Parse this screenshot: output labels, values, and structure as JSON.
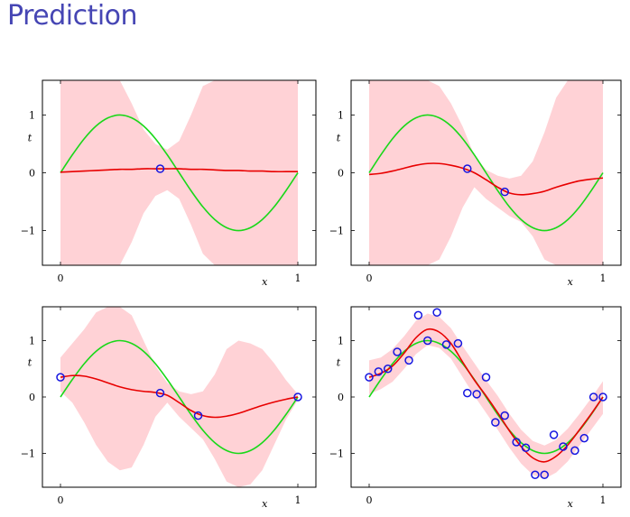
{
  "title": "Prediction",
  "colors": {
    "title": "#4646b4",
    "band": "#ffd2d6",
    "mean": "#e80000",
    "truth": "#19d819",
    "points": "#1515e0"
  },
  "chart_data": [
    {
      "type": "line",
      "xlabel": "x",
      "ylabel": "t",
      "xlim": [
        0,
        1
      ],
      "ylim": [
        -1.6,
        1.6
      ],
      "x_ticks": [
        "0",
        "1"
      ],
      "y_ticks": [
        "−1",
        "0",
        "1"
      ],
      "x": [
        0,
        0.05,
        0.1,
        0.15,
        0.2,
        0.25,
        0.3,
        0.35,
        0.4,
        0.45,
        0.5,
        0.55,
        0.6,
        0.65,
        0.7,
        0.75,
        0.8,
        0.85,
        0.9,
        0.95,
        1
      ],
      "series": [
        {
          "role": "true_function",
          "values": [
            0,
            0.31,
            0.59,
            0.81,
            0.95,
            1,
            0.95,
            0.81,
            0.59,
            0.31,
            0,
            -0.31,
            -0.59,
            -0.81,
            -0.95,
            -1,
            -0.95,
            -0.81,
            -0.59,
            -0.31,
            0
          ]
        },
        {
          "role": "predictive_mean",
          "values": [
            0.01,
            0.02,
            0.03,
            0.04,
            0.05,
            0.06,
            0.06,
            0.07,
            0.07,
            0.07,
            0.07,
            0.06,
            0.06,
            0.05,
            0.04,
            0.04,
            0.03,
            0.03,
            0.02,
            0.02,
            0.02
          ]
        },
        {
          "role": "upper_band",
          "values": [
            1.6,
            1.6,
            1.6,
            1.6,
            1.6,
            1.6,
            1.2,
            0.75,
            0.5,
            0.4,
            0.55,
            1,
            1.5,
            1.6,
            1.6,
            1.6,
            1.6,
            1.6,
            1.6,
            1.6,
            1.6
          ]
        },
        {
          "role": "lower_band",
          "values": [
            -1.6,
            -1.6,
            -1.6,
            -1.6,
            -1.6,
            -1.6,
            -1.2,
            -0.7,
            -0.4,
            -0.3,
            -0.45,
            -0.9,
            -1.4,
            -1.6,
            -1.6,
            -1.6,
            -1.6,
            -1.6,
            -1.6,
            -1.6,
            -1.6
          ]
        }
      ],
      "points": [
        [
          0.42,
          0.07
        ]
      ]
    },
    {
      "type": "line",
      "xlabel": "x",
      "ylabel": "t",
      "xlim": [
        0,
        1
      ],
      "ylim": [
        -1.6,
        1.6
      ],
      "x_ticks": [
        "0",
        "1"
      ],
      "y_ticks": [
        "−1",
        "0",
        "1"
      ],
      "x": [
        0,
        0.05,
        0.1,
        0.15,
        0.2,
        0.25,
        0.3,
        0.35,
        0.4,
        0.45,
        0.5,
        0.55,
        0.6,
        0.65,
        0.7,
        0.75,
        0.8,
        0.85,
        0.9,
        0.95,
        1
      ],
      "series": [
        {
          "role": "true_function",
          "values": [
            0,
            0.31,
            0.59,
            0.81,
            0.95,
            1,
            0.95,
            0.81,
            0.59,
            0.31,
            0,
            -0.31,
            -0.59,
            -0.81,
            -0.95,
            -1,
            -0.95,
            -0.81,
            -0.59,
            -0.31,
            0
          ]
        },
        {
          "role": "predictive_mean",
          "values": [
            -0.03,
            -0.01,
            0.03,
            0.08,
            0.13,
            0.16,
            0.16,
            0.13,
            0.08,
            0,
            -0.12,
            -0.25,
            -0.35,
            -0.38,
            -0.36,
            -0.32,
            -0.25,
            -0.19,
            -0.14,
            -0.11,
            -0.09
          ]
        },
        {
          "role": "upper_band",
          "values": [
            1.6,
            1.6,
            1.6,
            1.6,
            1.6,
            1.6,
            1.5,
            1.2,
            0.8,
            0.3,
            0.05,
            -0.05,
            -0.1,
            -0.05,
            0.2,
            0.7,
            1.3,
            1.6,
            1.6,
            1.6,
            1.6
          ]
        },
        {
          "role": "lower_band",
          "values": [
            -1.6,
            -1.6,
            -1.6,
            -1.6,
            -1.6,
            -1.6,
            -1.5,
            -1.1,
            -0.6,
            -0.25,
            -0.45,
            -0.6,
            -0.75,
            -0.85,
            -1.1,
            -1.5,
            -1.6,
            -1.6,
            -1.6,
            -1.6,
            -1.6
          ]
        }
      ],
      "points": [
        [
          0.42,
          0.07
        ],
        [
          0.58,
          -0.33
        ]
      ]
    },
    {
      "type": "line",
      "xlabel": "x",
      "ylabel": "t",
      "xlim": [
        0,
        1
      ],
      "ylim": [
        -1.6,
        1.6
      ],
      "x_ticks": [
        "0",
        "1"
      ],
      "y_ticks": [
        "−1",
        "0",
        "1"
      ],
      "x": [
        0,
        0.05,
        0.1,
        0.15,
        0.2,
        0.25,
        0.3,
        0.35,
        0.4,
        0.45,
        0.5,
        0.55,
        0.6,
        0.65,
        0.7,
        0.75,
        0.8,
        0.85,
        0.9,
        0.95,
        1
      ],
      "series": [
        {
          "role": "true_function",
          "values": [
            0,
            0.31,
            0.59,
            0.81,
            0.95,
            1,
            0.95,
            0.81,
            0.59,
            0.31,
            0,
            -0.31,
            -0.59,
            -0.81,
            -0.95,
            -1,
            -0.95,
            -0.81,
            -0.59,
            -0.31,
            0
          ]
        },
        {
          "role": "predictive_mean",
          "values": [
            0.35,
            0.38,
            0.37,
            0.32,
            0.25,
            0.18,
            0.13,
            0.1,
            0.08,
            0.03,
            -0.1,
            -0.24,
            -0.33,
            -0.36,
            -0.34,
            -0.29,
            -0.22,
            -0.15,
            -0.09,
            -0.04,
            0
          ]
        },
        {
          "role": "upper_band",
          "values": [
            0.7,
            0.95,
            1.2,
            1.5,
            1.6,
            1.6,
            1.45,
            1.0,
            0.55,
            0.25,
            0.1,
            0.05,
            0.1,
            0.4,
            0.85,
            1.0,
            0.95,
            0.85,
            0.6,
            0.3,
            0.05
          ]
        },
        {
          "role": "lower_band",
          "values": [
            0.1,
            -0.1,
            -0.45,
            -0.85,
            -1.15,
            -1.3,
            -1.25,
            -0.85,
            -0.35,
            -0.1,
            -0.35,
            -0.55,
            -0.75,
            -1.1,
            -1.5,
            -1.6,
            -1.55,
            -1.3,
            -0.85,
            -0.4,
            -0.05
          ]
        }
      ],
      "points": [
        [
          0,
          0.35
        ],
        [
          0.42,
          0.07
        ],
        [
          0.58,
          -0.33
        ],
        [
          1,
          0
        ]
      ]
    },
    {
      "type": "line",
      "xlabel": "x",
      "ylabel": "t",
      "xlim": [
        0,
        1
      ],
      "ylim": [
        -1.6,
        1.6
      ],
      "x_ticks": [
        "0",
        "1"
      ],
      "y_ticks": [
        "−1",
        "0",
        "1"
      ],
      "x": [
        0,
        0.05,
        0.1,
        0.15,
        0.2,
        0.25,
        0.3,
        0.35,
        0.4,
        0.45,
        0.5,
        0.55,
        0.6,
        0.65,
        0.7,
        0.75,
        0.8,
        0.85,
        0.9,
        0.95,
        1
      ],
      "series": [
        {
          "role": "true_function",
          "values": [
            0,
            0.31,
            0.59,
            0.81,
            0.95,
            1,
            0.95,
            0.81,
            0.59,
            0.31,
            0,
            -0.31,
            -0.59,
            -0.81,
            -0.95,
            -1,
            -0.95,
            -0.81,
            -0.59,
            -0.31,
            0
          ]
        },
        {
          "role": "predictive_mean",
          "values": [
            0.35,
            0.42,
            0.55,
            0.78,
            1.05,
            1.2,
            1.15,
            0.95,
            0.62,
            0.3,
            0.02,
            -0.28,
            -0.6,
            -0.88,
            -1.08,
            -1.15,
            -1.05,
            -0.85,
            -0.58,
            -0.3,
            0
          ]
        },
        {
          "role": "upper_band",
          "values": [
            0.65,
            0.7,
            0.85,
            1.08,
            1.35,
            1.48,
            1.42,
            1.22,
            0.9,
            0.6,
            0.3,
            0.02,
            -0.3,
            -0.58,
            -0.78,
            -0.86,
            -0.76,
            -0.56,
            -0.3,
            -0.02,
            0.28
          ]
        },
        {
          "role": "lower_band",
          "values": [
            0.05,
            0.14,
            0.27,
            0.5,
            0.76,
            0.92,
            0.87,
            0.68,
            0.35,
            0.02,
            -0.28,
            -0.58,
            -0.9,
            -1.18,
            -1.38,
            -1.45,
            -1.34,
            -1.14,
            -0.86,
            -0.58,
            -0.3
          ]
        }
      ],
      "points": [
        [
          0,
          0.35
        ],
        [
          0.04,
          0.45
        ],
        [
          0.08,
          0.5
        ],
        [
          0.12,
          0.8
        ],
        [
          0.17,
          0.65
        ],
        [
          0.21,
          1.45
        ],
        [
          0.25,
          1.0
        ],
        [
          0.29,
          1.5
        ],
        [
          0.33,
          0.93
        ],
        [
          0.38,
          0.95
        ],
        [
          0.42,
          0.07
        ],
        [
          0.46,
          0.05
        ],
        [
          0.5,
          0.35
        ],
        [
          0.54,
          -0.45
        ],
        [
          0.58,
          -0.33
        ],
        [
          0.63,
          -0.8
        ],
        [
          0.67,
          -0.9
        ],
        [
          0.71,
          -1.38
        ],
        [
          0.75,
          -1.38
        ],
        [
          0.79,
          -0.67
        ],
        [
          0.83,
          -0.88
        ],
        [
          0.88,
          -0.95
        ],
        [
          0.92,
          -0.73
        ],
        [
          0.96,
          0.0
        ],
        [
          1.0,
          0.0
        ]
      ]
    }
  ]
}
